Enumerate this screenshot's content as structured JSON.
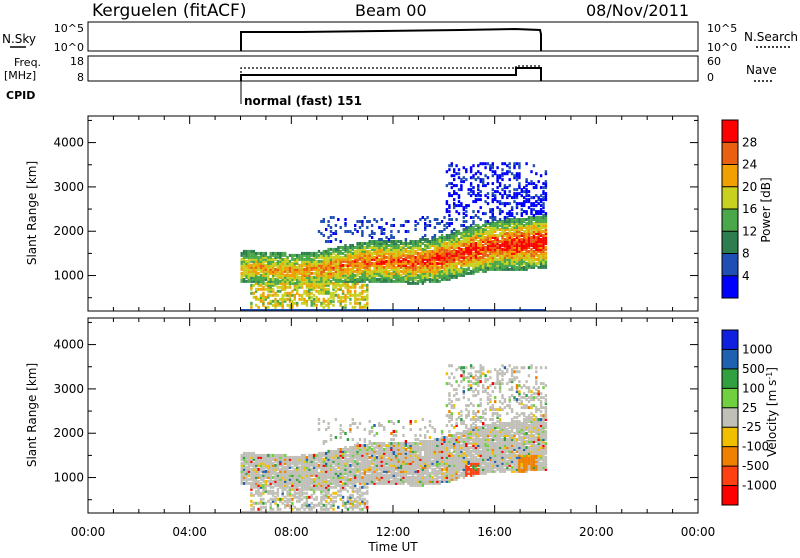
{
  "header": {
    "station": "Kerguelen (fitACF)",
    "beam": "Beam 00",
    "date": "08/Nov/2011"
  },
  "status_panels": {
    "nsky": {
      "label": "N.Sky",
      "ticks_left": [
        "10^5",
        "10^0"
      ],
      "ticks_right": [
        "10^5",
        "10^0"
      ],
      "right_label": "N.Search"
    },
    "freq": {
      "label_line1": "Freq.",
      "label_line2": "[MHz]",
      "ticks_left": [
        "18",
        "8"
      ],
      "ticks_right": [
        "60",
        "0"
      ],
      "right_label": "Nave"
    },
    "cpid": {
      "label": "CPID",
      "text": "normal (fast) 151"
    }
  },
  "chart_data": [
    {
      "type": "heatmap",
      "name": "Power",
      "ylabel": "Slant Range [km]",
      "yticks": [
        "1000",
        "2000",
        "3000",
        "4000"
      ],
      "ylim": [
        200,
        4600
      ],
      "xlim": [
        0,
        24
      ],
      "colorbar": {
        "label": "Power [dB]",
        "ticks": [
          "4",
          "8",
          "12",
          "16",
          "20",
          "24",
          "28"
        ],
        "colors": [
          "#0000ff",
          "#1f4fb4",
          "#2e7d4f",
          "#4aa84a",
          "#c8d020",
          "#f0a000",
          "#e86010",
          "#ff0000"
        ]
      },
      "data_extent": {
        "start_hour": 6,
        "end_hour": 18
      }
    },
    {
      "type": "heatmap",
      "name": "Velocity",
      "ylabel": "Slant Range [km]",
      "yticks": [
        "1000",
        "2000",
        "3000",
        "4000"
      ],
      "ylim": [
        200,
        4600
      ],
      "xlim": [
        0,
        24
      ],
      "xlabel": "Time UT",
      "xticks": [
        "00:00",
        "04:00",
        "08:00",
        "12:00",
        "16:00",
        "20:00",
        "00:00"
      ],
      "colorbar": {
        "label": "Velocity [m s",
        "label_sup": "-1",
        "label_end": "]",
        "ticks": [
          "1000",
          "500",
          "100",
          "25",
          "-25",
          "-100",
          "-500",
          "-1000"
        ],
        "colors": [
          "#1020e0",
          "#2060b0",
          "#30a040",
          "#70d040",
          "#c0c0b8",
          "#f0c000",
          "#f08000",
          "#ff4010",
          "#ff0000"
        ]
      },
      "data_extent": {
        "start_hour": 6,
        "end_hour": 18
      }
    }
  ]
}
